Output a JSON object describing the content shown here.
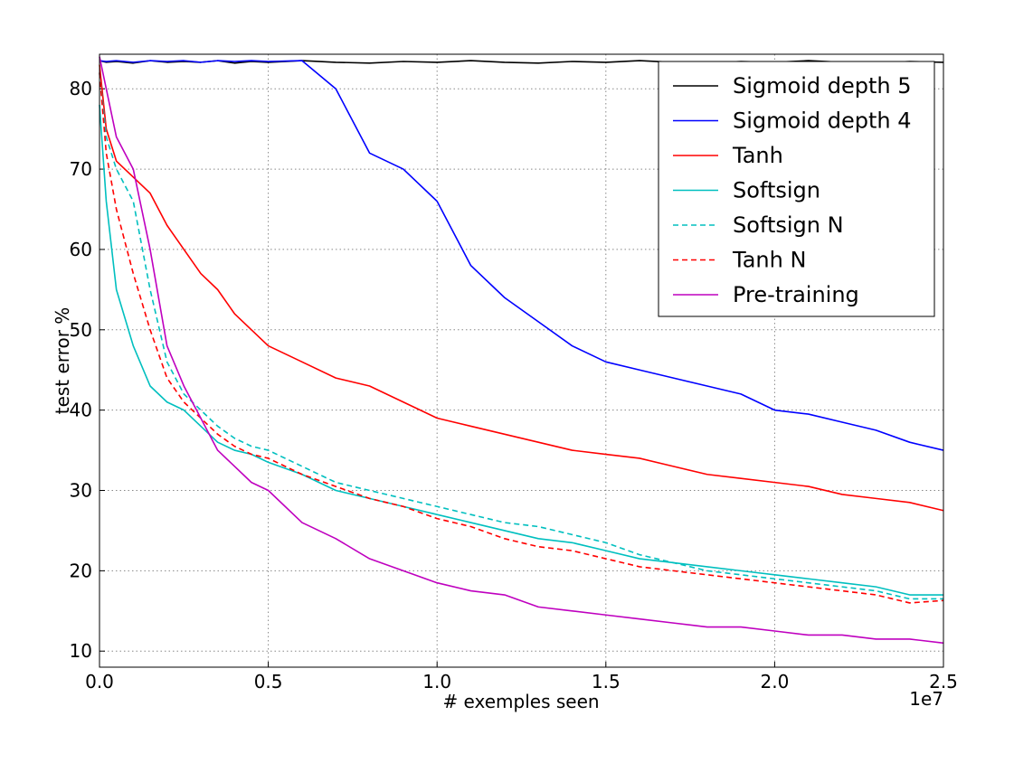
{
  "chart_data": {
    "type": "line",
    "x_label": "# exemples seen",
    "y_label": "test error %",
    "x_offset_label": "1e7",
    "xlim": [
      0,
      2.5
    ],
    "ylim": [
      8,
      84.3
    ],
    "xticks": [
      {
        "value": 0,
        "label": "0.0"
      },
      {
        "value": 0.5,
        "label": "0.5"
      },
      {
        "value": 1,
        "label": "1.0"
      },
      {
        "value": 1.5,
        "label": "1.5"
      },
      {
        "value": 2,
        "label": "2.0"
      },
      {
        "value": 2.5,
        "label": "2.5"
      }
    ],
    "yticks": [
      10,
      20,
      30,
      40,
      50,
      60,
      70,
      80
    ],
    "grid": true,
    "legend": "upper right",
    "x": [
      0,
      0.02,
      0.05,
      0.1,
      0.15,
      0.2,
      0.25,
      0.3,
      0.35,
      0.4,
      0.45,
      0.5,
      0.6,
      0.7,
      0.8,
      0.9,
      1.0,
      1.1,
      1.2,
      1.3,
      1.4,
      1.5,
      1.6,
      1.7,
      1.8,
      1.9,
      2.0,
      2.1,
      2.2,
      2.3,
      2.4,
      2.5
    ],
    "series": [
      {
        "name": "Sigmoid depth 5",
        "color": "#000000",
        "dashed": false,
        "values": [
          83.5,
          83.3,
          83.4,
          83.2,
          83.5,
          83.3,
          83.4,
          83.3,
          83.5,
          83.2,
          83.4,
          83.3,
          83.5,
          83.3,
          83.2,
          83.4,
          83.3,
          83.5,
          83.3,
          83.2,
          83.4,
          83.3,
          83.5,
          83.3,
          83.2,
          83.4,
          83.3,
          83.5,
          83.3,
          83.2,
          83.4,
          83.3
        ]
      },
      {
        "name": "Sigmoid depth 4",
        "color": "#0000ff",
        "dashed": false,
        "values": [
          83.5,
          83.4,
          83.5,
          83.3,
          83.5,
          83.4,
          83.5,
          83.3,
          83.5,
          83.4,
          83.5,
          83.4,
          83.5,
          80,
          72,
          70,
          66,
          58,
          54,
          51,
          48,
          46,
          45,
          44,
          43,
          42,
          40,
          39.5,
          38.5,
          37.5,
          36,
          35
        ]
      },
      {
        "name": "Tanh",
        "color": "#ff0000",
        "dashed": false,
        "values": [
          83,
          75,
          71,
          69,
          67,
          63,
          60,
          57,
          55,
          52,
          50,
          48,
          46,
          44,
          43,
          41,
          39,
          38,
          37,
          36,
          35,
          34.5,
          34,
          33,
          32,
          31.5,
          31,
          30.5,
          29.5,
          29,
          28.5,
          27.5
        ]
      },
      {
        "name": "Softsign",
        "color": "#00bfbf",
        "dashed": false,
        "values": [
          78,
          66,
          55,
          48,
          43,
          41,
          40,
          38,
          36,
          35,
          34.5,
          33.5,
          32,
          30,
          29,
          28,
          27,
          26,
          25,
          24,
          23.5,
          22.5,
          21.5,
          21,
          20.5,
          20,
          19.5,
          19,
          18.5,
          18,
          17,
          17
        ]
      },
      {
        "name": "Softsign N",
        "color": "#00bfbf",
        "dashed": true,
        "values": [
          82,
          74,
          70,
          66,
          55,
          46,
          42,
          40,
          38,
          36.5,
          35.5,
          35,
          33,
          31,
          30,
          29,
          28,
          27,
          26,
          25.5,
          24.5,
          23.5,
          22,
          21,
          20,
          19.5,
          19,
          18.5,
          18,
          17.5,
          16.5,
          16.5
        ]
      },
      {
        "name": "Tanh N",
        "color": "#ff0000",
        "dashed": true,
        "values": [
          82,
          72,
          65,
          57,
          50,
          44,
          41,
          39,
          37,
          35.5,
          34.5,
          34,
          32,
          30.5,
          29,
          28,
          26.5,
          25.5,
          24,
          23,
          22.5,
          21.5,
          20.5,
          20,
          19.5,
          19,
          18.5,
          18,
          17.5,
          17,
          16,
          16.3
        ]
      },
      {
        "name": "Pre-training",
        "color": "#bf00bf",
        "dashed": false,
        "values": [
          84,
          80,
          74,
          70,
          60,
          48,
          43,
          39,
          35,
          33,
          31,
          30,
          26,
          24,
          21.5,
          20,
          18.5,
          17.5,
          17,
          15.5,
          15,
          14.5,
          14,
          13.5,
          13,
          13,
          12.5,
          12,
          12,
          11.5,
          11.5,
          11
        ]
      }
    ]
  }
}
